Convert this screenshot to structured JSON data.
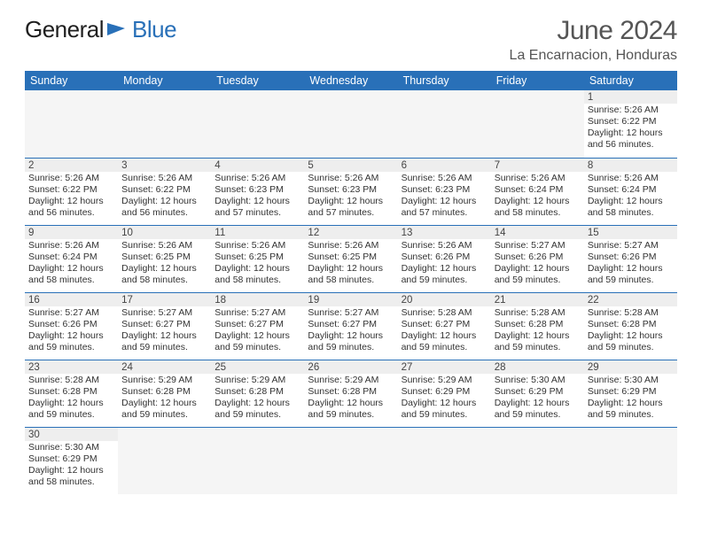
{
  "brand": {
    "general": "General",
    "blue": "Blue"
  },
  "header": {
    "title": "June 2024",
    "location": "La Encarnacion, Honduras"
  },
  "colors": {
    "accent": "#2970b8",
    "header_bg": "#2970b8",
    "header_text": "#ffffff",
    "daybar": "#eeeeee",
    "border": "#2970b8",
    "body_text": "#333333",
    "title_text": "#555555",
    "empty_bg": "#f5f5f5"
  },
  "columns": [
    "Sunday",
    "Monday",
    "Tuesday",
    "Wednesday",
    "Thursday",
    "Friday",
    "Saturday"
  ],
  "weeks": [
    [
      null,
      null,
      null,
      null,
      null,
      null,
      {
        "n": "1",
        "sunrise": "Sunrise: 5:26 AM",
        "sunset": "Sunset: 6:22 PM",
        "daylight": "Daylight: 12 hours and 56 minutes."
      }
    ],
    [
      {
        "n": "2",
        "sunrise": "Sunrise: 5:26 AM",
        "sunset": "Sunset: 6:22 PM",
        "daylight": "Daylight: 12 hours and 56 minutes."
      },
      {
        "n": "3",
        "sunrise": "Sunrise: 5:26 AM",
        "sunset": "Sunset: 6:22 PM",
        "daylight": "Daylight: 12 hours and 56 minutes."
      },
      {
        "n": "4",
        "sunrise": "Sunrise: 5:26 AM",
        "sunset": "Sunset: 6:23 PM",
        "daylight": "Daylight: 12 hours and 57 minutes."
      },
      {
        "n": "5",
        "sunrise": "Sunrise: 5:26 AM",
        "sunset": "Sunset: 6:23 PM",
        "daylight": "Daylight: 12 hours and 57 minutes."
      },
      {
        "n": "6",
        "sunrise": "Sunrise: 5:26 AM",
        "sunset": "Sunset: 6:23 PM",
        "daylight": "Daylight: 12 hours and 57 minutes."
      },
      {
        "n": "7",
        "sunrise": "Sunrise: 5:26 AM",
        "sunset": "Sunset: 6:24 PM",
        "daylight": "Daylight: 12 hours and 58 minutes."
      },
      {
        "n": "8",
        "sunrise": "Sunrise: 5:26 AM",
        "sunset": "Sunset: 6:24 PM",
        "daylight": "Daylight: 12 hours and 58 minutes."
      }
    ],
    [
      {
        "n": "9",
        "sunrise": "Sunrise: 5:26 AM",
        "sunset": "Sunset: 6:24 PM",
        "daylight": "Daylight: 12 hours and 58 minutes."
      },
      {
        "n": "10",
        "sunrise": "Sunrise: 5:26 AM",
        "sunset": "Sunset: 6:25 PM",
        "daylight": "Daylight: 12 hours and 58 minutes."
      },
      {
        "n": "11",
        "sunrise": "Sunrise: 5:26 AM",
        "sunset": "Sunset: 6:25 PM",
        "daylight": "Daylight: 12 hours and 58 minutes."
      },
      {
        "n": "12",
        "sunrise": "Sunrise: 5:26 AM",
        "sunset": "Sunset: 6:25 PM",
        "daylight": "Daylight: 12 hours and 58 minutes."
      },
      {
        "n": "13",
        "sunrise": "Sunrise: 5:26 AM",
        "sunset": "Sunset: 6:26 PM",
        "daylight": "Daylight: 12 hours and 59 minutes."
      },
      {
        "n": "14",
        "sunrise": "Sunrise: 5:27 AM",
        "sunset": "Sunset: 6:26 PM",
        "daylight": "Daylight: 12 hours and 59 minutes."
      },
      {
        "n": "15",
        "sunrise": "Sunrise: 5:27 AM",
        "sunset": "Sunset: 6:26 PM",
        "daylight": "Daylight: 12 hours and 59 minutes."
      }
    ],
    [
      {
        "n": "16",
        "sunrise": "Sunrise: 5:27 AM",
        "sunset": "Sunset: 6:26 PM",
        "daylight": "Daylight: 12 hours and 59 minutes."
      },
      {
        "n": "17",
        "sunrise": "Sunrise: 5:27 AM",
        "sunset": "Sunset: 6:27 PM",
        "daylight": "Daylight: 12 hours and 59 minutes."
      },
      {
        "n": "18",
        "sunrise": "Sunrise: 5:27 AM",
        "sunset": "Sunset: 6:27 PM",
        "daylight": "Daylight: 12 hours and 59 minutes."
      },
      {
        "n": "19",
        "sunrise": "Sunrise: 5:27 AM",
        "sunset": "Sunset: 6:27 PM",
        "daylight": "Daylight: 12 hours and 59 minutes."
      },
      {
        "n": "20",
        "sunrise": "Sunrise: 5:28 AM",
        "sunset": "Sunset: 6:27 PM",
        "daylight": "Daylight: 12 hours and 59 minutes."
      },
      {
        "n": "21",
        "sunrise": "Sunrise: 5:28 AM",
        "sunset": "Sunset: 6:28 PM",
        "daylight": "Daylight: 12 hours and 59 minutes."
      },
      {
        "n": "22",
        "sunrise": "Sunrise: 5:28 AM",
        "sunset": "Sunset: 6:28 PM",
        "daylight": "Daylight: 12 hours and 59 minutes."
      }
    ],
    [
      {
        "n": "23",
        "sunrise": "Sunrise: 5:28 AM",
        "sunset": "Sunset: 6:28 PM",
        "daylight": "Daylight: 12 hours and 59 minutes."
      },
      {
        "n": "24",
        "sunrise": "Sunrise: 5:29 AM",
        "sunset": "Sunset: 6:28 PM",
        "daylight": "Daylight: 12 hours and 59 minutes."
      },
      {
        "n": "25",
        "sunrise": "Sunrise: 5:29 AM",
        "sunset": "Sunset: 6:28 PM",
        "daylight": "Daylight: 12 hours and 59 minutes."
      },
      {
        "n": "26",
        "sunrise": "Sunrise: 5:29 AM",
        "sunset": "Sunset: 6:28 PM",
        "daylight": "Daylight: 12 hours and 59 minutes."
      },
      {
        "n": "27",
        "sunrise": "Sunrise: 5:29 AM",
        "sunset": "Sunset: 6:29 PM",
        "daylight": "Daylight: 12 hours and 59 minutes."
      },
      {
        "n": "28",
        "sunrise": "Sunrise: 5:30 AM",
        "sunset": "Sunset: 6:29 PM",
        "daylight": "Daylight: 12 hours and 59 minutes."
      },
      {
        "n": "29",
        "sunrise": "Sunrise: 5:30 AM",
        "sunset": "Sunset: 6:29 PM",
        "daylight": "Daylight: 12 hours and 59 minutes."
      }
    ],
    [
      {
        "n": "30",
        "sunrise": "Sunrise: 5:30 AM",
        "sunset": "Sunset: 6:29 PM",
        "daylight": "Daylight: 12 hours and 58 minutes."
      },
      null,
      null,
      null,
      null,
      null,
      null
    ]
  ]
}
